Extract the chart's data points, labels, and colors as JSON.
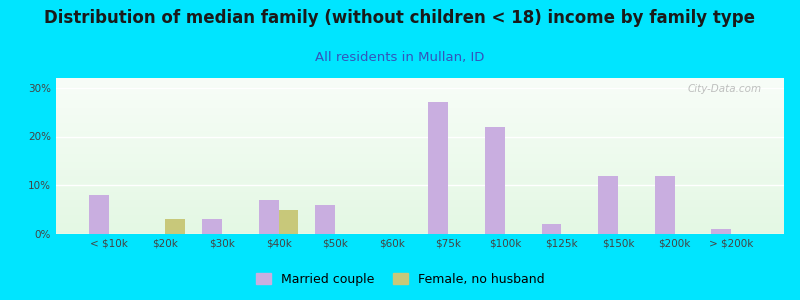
{
  "title": "Distribution of median family (without children < 18) income by family type",
  "subtitle": "All residents in Mullan, ID",
  "categories": [
    "< $10k",
    "$20k",
    "$30k",
    "$40k",
    "$50k",
    "$60k",
    "$75k",
    "$100k",
    "$125k",
    "$150k",
    "$200k",
    "> $200k"
  ],
  "married_couple": [
    8.0,
    0.0,
    3.0,
    7.0,
    6.0,
    0.0,
    27.0,
    22.0,
    2.0,
    12.0,
    12.0,
    1.0
  ],
  "female_no_husband": [
    0.0,
    3.0,
    0.0,
    5.0,
    0.0,
    0.0,
    0.0,
    0.0,
    0.0,
    0.0,
    0.0,
    0.0
  ],
  "married_color": "#c9aee0",
  "female_color": "#c8c87a",
  "background_outer": "#00e5ff",
  "title_color": "#1a1a1a",
  "subtitle_color": "#3355bb",
  "axis_label_color": "#444444",
  "yticks": [
    0,
    10,
    20,
    30
  ],
  "ylim": [
    0,
    32
  ],
  "bar_width": 0.35,
  "title_fontsize": 12,
  "subtitle_fontsize": 9.5,
  "tick_fontsize": 7.5,
  "legend_fontsize": 9
}
